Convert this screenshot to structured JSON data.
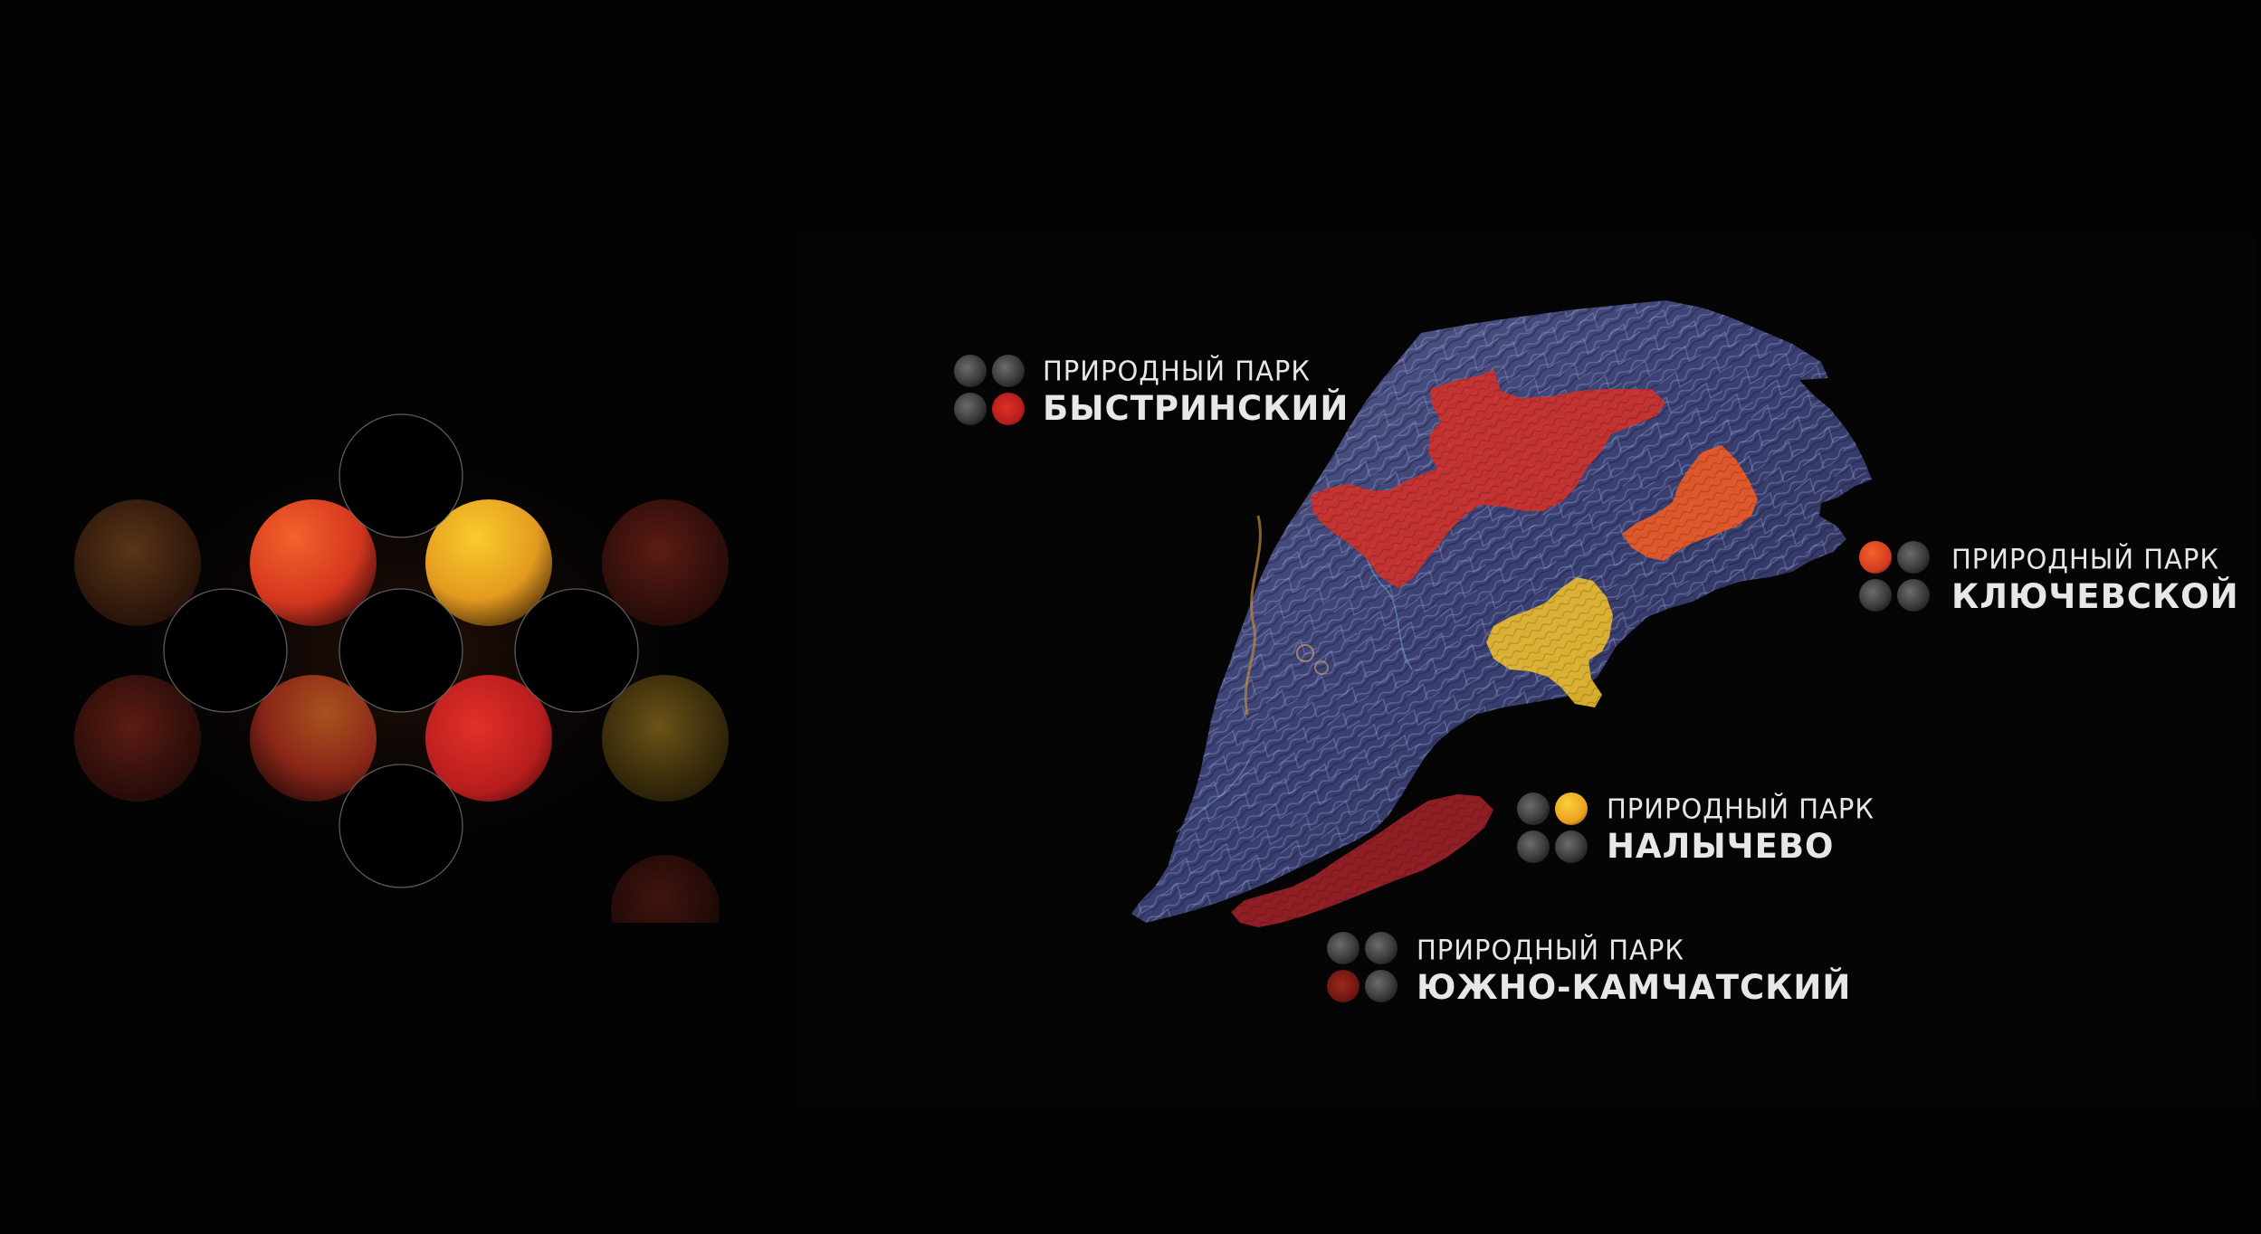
{
  "legend": {
    "colors": [
      "#e23a2b",
      "#f0662a",
      "#f2b52a",
      "#8a1f1c"
    ]
  },
  "parks": [
    {
      "line1": "ПРИРОДНЫЙ ПАРК",
      "line2": "БЫСТРИНСКИЙ",
      "color": "#d42a22"
    },
    {
      "line1": "ПРИРОДНЫЙ ПАРК",
      "line2": "КЛЮЧЕВСКОЙ",
      "color": "#ec4b25"
    },
    {
      "line1": "ПРИРОДНЫЙ ПАРК",
      "line2": "НАЛЫЧЕВО",
      "color": "#f3b021"
    },
    {
      "line1": "ПРИРОДНЫЙ ПАРК",
      "line2": "ЮЖНО-КАМЧАТСКИЙ",
      "color": "#8b1d1b"
    }
  ],
  "map": {
    "land_color": "#3b3f6e",
    "zone_colors": {
      "bystrinsky": "#d93228",
      "klyuchevskoy": "#ef5a22",
      "nalychevo": "#e9bb2e",
      "south_kamchatka": "#a12127"
    }
  }
}
